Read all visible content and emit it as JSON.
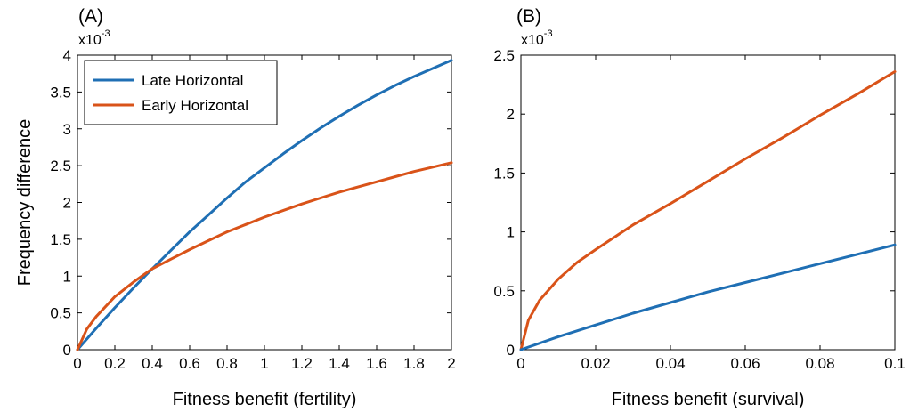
{
  "chart_data": [
    {
      "panel_label": "(A)",
      "type": "line",
      "xlabel": "Fitness benefit (fertility)",
      "ylabel": "Frequency difference",
      "y_multiplier": "x10",
      "y_multiplier_exp": "-3",
      "xlim": [
        0,
        2
      ],
      "ylim": [
        0,
        4
      ],
      "xticks": [
        0,
        0.2,
        0.4,
        0.6,
        0.8,
        1,
        1.2,
        1.4,
        1.6,
        1.8,
        2
      ],
      "xtick_labels": [
        "0",
        "0.2",
        "0.4",
        "0.6",
        "0.8",
        "1",
        "1.2",
        "1.4",
        "1.6",
        "1.8",
        "2"
      ],
      "yticks": [
        0,
        0.5,
        1,
        1.5,
        2,
        2.5,
        3,
        3.5,
        4
      ],
      "ytick_labels": [
        "0",
        "0.5",
        "1",
        "1.5",
        "2",
        "2.5",
        "3",
        "3.5",
        "4"
      ],
      "grid": false,
      "legend_position": "top-left",
      "series": [
        {
          "name": "Late Horizontal",
          "color": "#1f6fb4",
          "x": [
            0,
            0.1,
            0.2,
            0.3,
            0.4,
            0.5,
            0.6,
            0.7,
            0.8,
            0.9,
            1.0,
            1.1,
            1.2,
            1.3,
            1.4,
            1.5,
            1.6,
            1.7,
            1.8,
            1.9,
            2.0
          ],
          "y": [
            0,
            0.29,
            0.57,
            0.84,
            1.1,
            1.35,
            1.6,
            1.83,
            2.06,
            2.28,
            2.47,
            2.66,
            2.84,
            3.01,
            3.17,
            3.32,
            3.46,
            3.59,
            3.71,
            3.82,
            3.93
          ]
        },
        {
          "name": "Early Horizontal",
          "color": "#d95319",
          "x": [
            0,
            0.05,
            0.1,
            0.2,
            0.3,
            0.4,
            0.5,
            0.6,
            0.7,
            0.8,
            0.9,
            1.0,
            1.1,
            1.2,
            1.3,
            1.4,
            1.5,
            1.6,
            1.7,
            1.8,
            1.9,
            2.0
          ],
          "y": [
            0,
            0.28,
            0.45,
            0.72,
            0.92,
            1.1,
            1.23,
            1.36,
            1.48,
            1.6,
            1.7,
            1.8,
            1.89,
            1.98,
            2.06,
            2.14,
            2.21,
            2.28,
            2.35,
            2.42,
            2.48,
            2.54
          ]
        }
      ]
    },
    {
      "panel_label": "(B)",
      "type": "line",
      "xlabel": "Fitness benefit (survival)",
      "ylabel": "",
      "y_multiplier": "x10",
      "y_multiplier_exp": "-3",
      "xlim": [
        0,
        0.1
      ],
      "ylim": [
        0,
        2.5
      ],
      "xticks": [
        0,
        0.02,
        0.04,
        0.06,
        0.08,
        0.1
      ],
      "xtick_labels": [
        "0",
        "0.02",
        "0.04",
        "0.06",
        "0.08",
        "0.1"
      ],
      "yticks": [
        0,
        0.5,
        1,
        1.5,
        2,
        2.5
      ],
      "ytick_labels": [
        "0",
        "0.5",
        "1",
        "1.5",
        "2",
        "2.5"
      ],
      "grid": false,
      "series": [
        {
          "color": "#d95319",
          "x": [
            0,
            0.002,
            0.005,
            0.01,
            0.015,
            0.02,
            0.03,
            0.04,
            0.05,
            0.06,
            0.07,
            0.08,
            0.09,
            0.1
          ],
          "y": [
            0,
            0.25,
            0.42,
            0.6,
            0.74,
            0.85,
            1.06,
            1.24,
            1.43,
            1.62,
            1.8,
            1.99,
            2.17,
            2.36
          ]
        },
        {
          "color": "#1f6fb4",
          "x": [
            0,
            0.01,
            0.02,
            0.03,
            0.04,
            0.05,
            0.06,
            0.07,
            0.08,
            0.09,
            0.1
          ],
          "y": [
            0,
            0.11,
            0.21,
            0.31,
            0.4,
            0.49,
            0.57,
            0.65,
            0.73,
            0.81,
            0.89
          ]
        }
      ]
    }
  ]
}
